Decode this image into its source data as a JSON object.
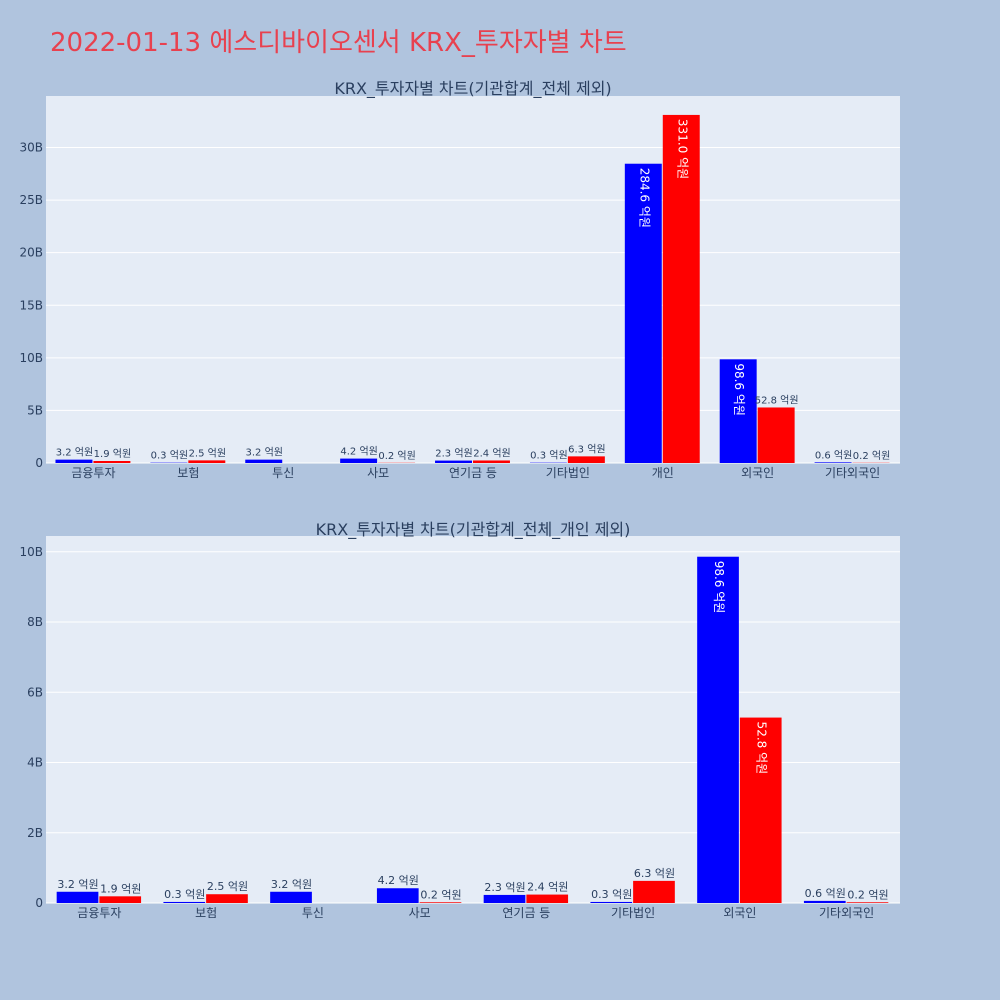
{
  "page_title": "2022-01-13 에스디바이오센서 KRX_투자자별 차트",
  "colors": {
    "title": "#e8414f",
    "buy": "#0000ff",
    "sell": "#ff0000",
    "plot_bg": "#e5ecf6",
    "page_bg": "#b0c4de"
  },
  "chart_data": [
    {
      "type": "bar",
      "title": "KRX_투자자별 차트(기관합계_전체 제외)",
      "categories": [
        "금융투자",
        "보험",
        "투신",
        "사모",
        "연기금 등",
        "기타법인",
        "개인",
        "외국인",
        "기타외국인"
      ],
      "series": [
        {
          "values": [
            0.32,
            0.03,
            0.32,
            0.42,
            0.23,
            0.03,
            28.46,
            9.86,
            0.06
          ],
          "labels": [
            "3.2 억원",
            "0.3 억원",
            "3.2 억원",
            "4.2 억원",
            "2.3 억원",
            "0.3 억원",
            "284.6 억원",
            "98.6 억원",
            "0.6 억원"
          ],
          "color": "#0000ff"
        },
        {
          "values": [
            0.19,
            0.25,
            0.0,
            0.02,
            0.24,
            0.63,
            33.1,
            5.28,
            0.02
          ],
          "labels": [
            "1.9 억원",
            "2.5 억원",
            "",
            "0.2 억원",
            "2.4 억원",
            "6.3 억원",
            "331.0 억원",
            "52.8 억원",
            "0.2 억원"
          ],
          "color": "#ff0000"
        }
      ],
      "yticks": [
        "0",
        "5B",
        "10B",
        "15B",
        "20B",
        "25B",
        "30B"
      ],
      "unit": "B",
      "ylim": [
        0,
        34.9
      ],
      "grid": true
    },
    {
      "type": "bar",
      "title": "KRX_투자자별 차트(기관합계_전체_개인 제외)",
      "categories": [
        "금융투자",
        "보험",
        "투신",
        "사모",
        "연기금 등",
        "기타법인",
        "외국인",
        "기타외국인"
      ],
      "series": [
        {
          "values": [
            0.32,
            0.03,
            0.32,
            0.42,
            0.23,
            0.03,
            9.86,
            0.06
          ],
          "labels": [
            "3.2 억원",
            "0.3 억원",
            "3.2 억원",
            "4.2 억원",
            "2.3 억원",
            "0.3 억원",
            "98.6 억원",
            "0.6 억원"
          ],
          "color": "#0000ff"
        },
        {
          "values": [
            0.19,
            0.25,
            0.0,
            0.02,
            0.24,
            0.63,
            5.28,
            0.02
          ],
          "labels": [
            "1.9 억원",
            "2.5 억원",
            "",
            "0.2 억원",
            "2.4 억원",
            "6.3 억원",
            "52.8 억원",
            "0.2 억원"
          ],
          "color": "#ff0000"
        }
      ],
      "yticks": [
        "0",
        "2B",
        "4B",
        "6B",
        "8B",
        "10B"
      ],
      "unit": "B",
      "ylim": [
        0,
        10.45
      ],
      "grid": true
    }
  ]
}
